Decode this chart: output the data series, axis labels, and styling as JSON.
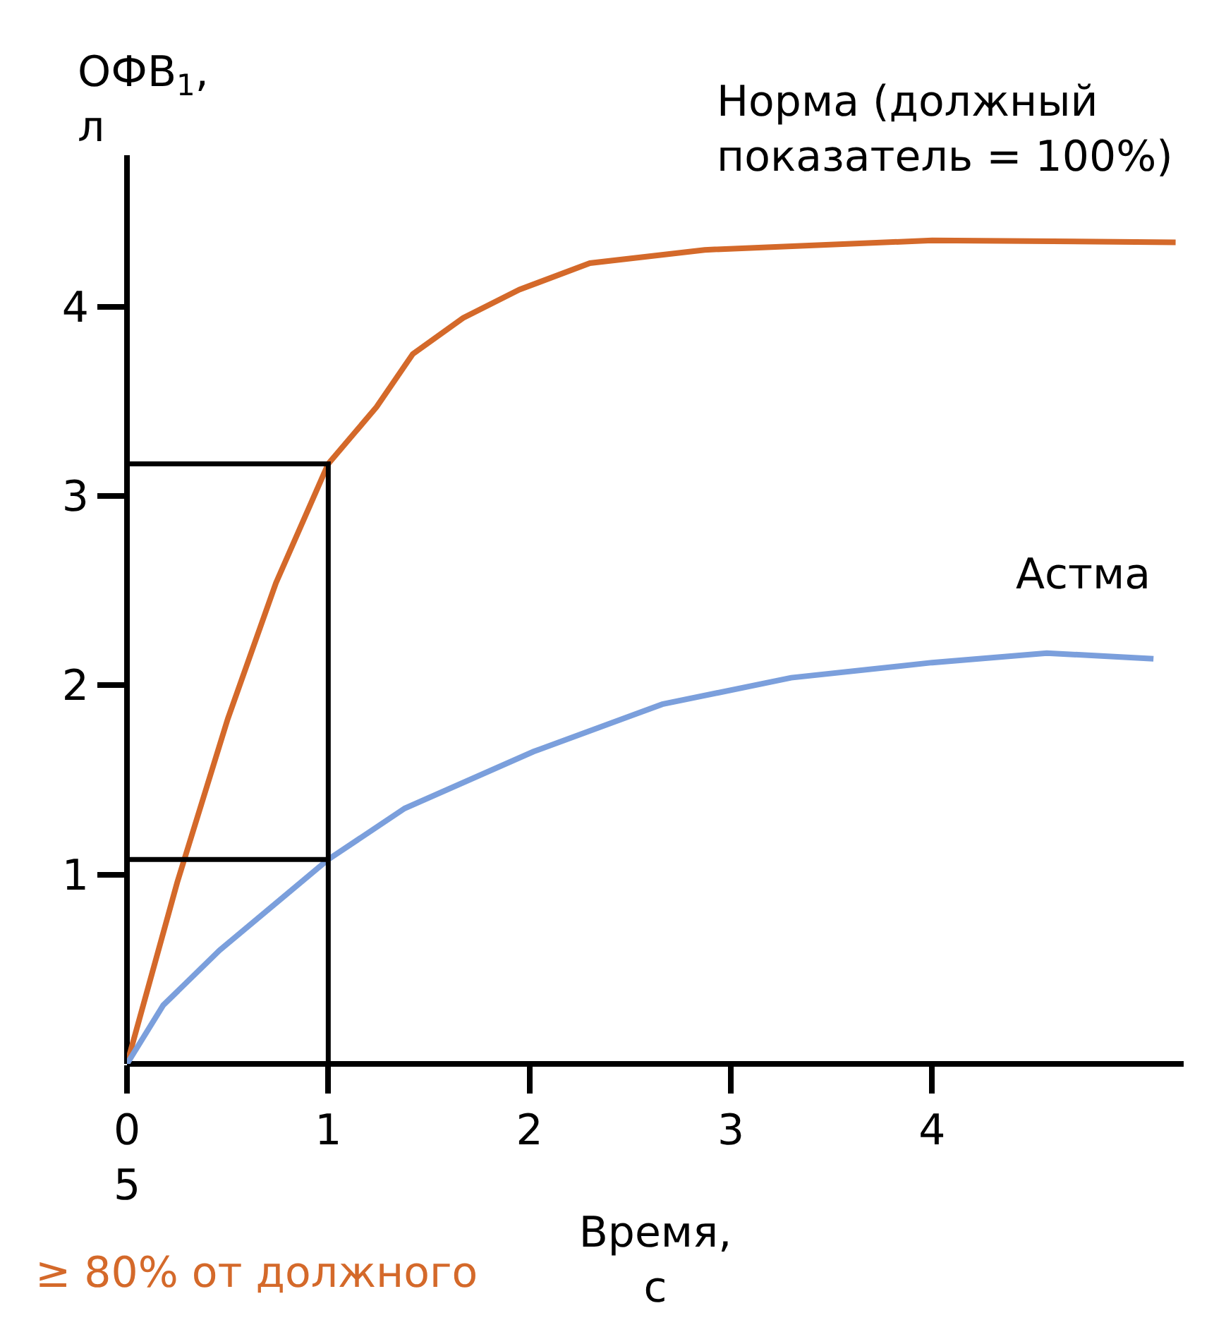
{
  "chart_data": {
    "type": "line",
    "xlabel": "Время,\nс",
    "ylabel": "ОФВ$_{1}$,\nл",
    "xlim": [
      0,
      5.25
    ],
    "ylim": [
      0,
      4.8
    ],
    "xticks": [
      {
        "value": 0,
        "label": "0\n5"
      },
      1,
      2,
      3,
      4
    ],
    "yticks": [
      1,
      2,
      3,
      4
    ],
    "grid": false,
    "legend": false,
    "marker": "none",
    "line_style": "solid",
    "series": [
      {
        "name": "Норма (должный\nпоказатель = 100%)",
        "color": "#d4692a",
        "x": [
          0,
          0.25,
          0.5,
          0.74,
          1.0,
          1.24,
          1.42,
          1.67,
          1.95,
          2.3,
          2.87,
          4.0,
          5.21
        ],
        "values": [
          0,
          0.96,
          1.82,
          2.54,
          3.17,
          3.47,
          3.75,
          3.94,
          4.09,
          4.23,
          4.3,
          4.35,
          4.34
        ]
      },
      {
        "name": "Астма",
        "color": "#7b9fdc",
        "x": [
          0,
          0.18,
          0.46,
          1.0,
          1.38,
          2.02,
          2.66,
          3.3,
          4.0,
          4.57,
          5.1
        ],
        "values": [
          0,
          0.31,
          0.6,
          1.08,
          1.35,
          1.65,
          1.9,
          2.04,
          2.12,
          2.17,
          2.14
        ]
      },
      {
        "color": "#000000",
        "x": [
          0,
          1,
          1,
          null,
          0,
          1
        ],
        "values": [
          3.17,
          3.17,
          0,
          null,
          1.08,
          1.08
        ]
      }
    ],
    "annotations": [
      "≥ 80% от должного"
    ]
  }
}
